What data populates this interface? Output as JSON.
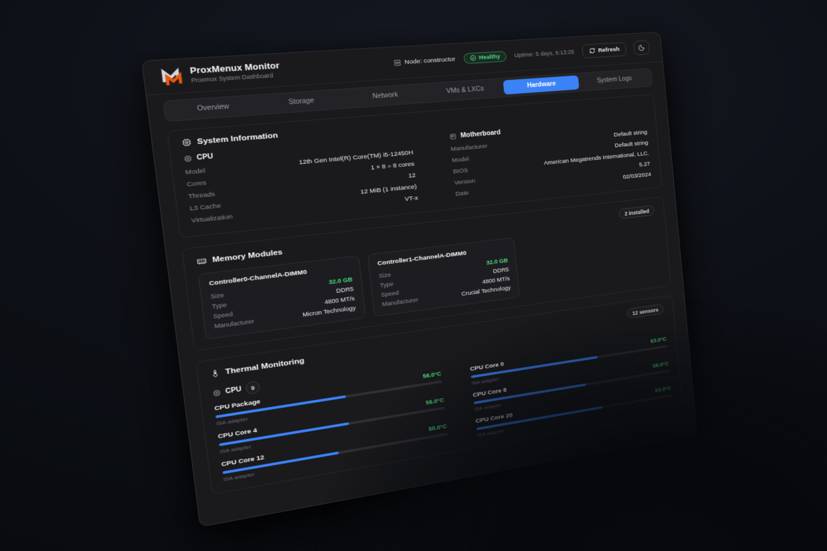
{
  "brand": {
    "title": "ProxMenux Monitor",
    "subtitle": "Proxmox System Dashboard"
  },
  "header": {
    "node_label": "Node: constructor",
    "health_status": "Healthy",
    "uptime": "Uptime: 5 days, 6:13:25",
    "refresh_label": "Refresh"
  },
  "tabs": [
    {
      "label": "Overview",
      "active": false
    },
    {
      "label": "Storage",
      "active": false
    },
    {
      "label": "Network",
      "active": false
    },
    {
      "label": "VMs & LXCs",
      "active": false
    },
    {
      "label": "Hardware",
      "active": true
    },
    {
      "label": "System Logs",
      "active": false
    }
  ],
  "system_info": {
    "title": "System Information",
    "cpu": {
      "title": "CPU",
      "rows": [
        {
          "label": "Model",
          "value": "12th Gen Intel(R) Core(TM) i5-12450H"
        },
        {
          "label": "Cores",
          "value": "1 × 8 = 8 cores"
        },
        {
          "label": "Threads",
          "value": "12"
        },
        {
          "label": "L3 Cache",
          "value": "12 MiB (1 instance)"
        },
        {
          "label": "Virtualization",
          "value": "VT-x"
        }
      ]
    },
    "motherboard": {
      "title": "Motherboard",
      "rows": [
        {
          "label": "Manufacturer",
          "value": "Default string"
        },
        {
          "label": "Model",
          "value": "Default string"
        },
        {
          "label": "BIOS",
          "value": "American Megatrends International, LLC."
        },
        {
          "label": "Version",
          "value": "5.27"
        },
        {
          "label": "Date",
          "value": "02/03/2024"
        }
      ]
    }
  },
  "memory": {
    "title": "Memory Modules",
    "badge": "2 installed",
    "modules": [
      {
        "name": "Controller0-ChannelA-DIMM0",
        "rows": [
          {
            "label": "Size",
            "value": "32.0 GB"
          },
          {
            "label": "Type",
            "value": "DDR5"
          },
          {
            "label": "Speed",
            "value": "4800 MT/s"
          },
          {
            "label": "Manufacturer",
            "value": "Micron Technology"
          }
        ]
      },
      {
        "name": "Controller1-ChannelA-DIMM0",
        "rows": [
          {
            "label": "Size",
            "value": "32.0 GB"
          },
          {
            "label": "Type",
            "value": "DDR5"
          },
          {
            "label": "Speed",
            "value": "4800 MT/s"
          },
          {
            "label": "Manufacturer",
            "value": "Crucial Technology"
          }
        ]
      }
    ]
  },
  "thermal": {
    "title": "Thermal Monitoring",
    "badge": "12 sensors",
    "group_label": "CPU",
    "group_count": "9",
    "sensors": [
      {
        "name": "CPU Package",
        "temp": "56.0°C",
        "pct": 56,
        "adapter": "ISA adapter"
      },
      {
        "name": "CPU Core 0",
        "temp": "63.0°C",
        "pct": 63,
        "adapter": "ISA adapter"
      },
      {
        "name": "CPU Core 4",
        "temp": "56.0°C",
        "pct": 56,
        "adapter": "ISA adapter"
      },
      {
        "name": "CPU Core 8",
        "temp": "56.0°C",
        "pct": 56,
        "adapter": "ISA adapter"
      },
      {
        "name": "CPU Core 12",
        "temp": "50.0°C",
        "pct": 50,
        "adapter": "ISA adapter"
      },
      {
        "name": "CPU Core 20",
        "temp": "63.0°C",
        "pct": 63,
        "adapter": "ISA adapter"
      }
    ]
  },
  "colors": {
    "accent": "#3b82f6",
    "success": "#4ade80",
    "logo_orange": "#e8590c"
  }
}
